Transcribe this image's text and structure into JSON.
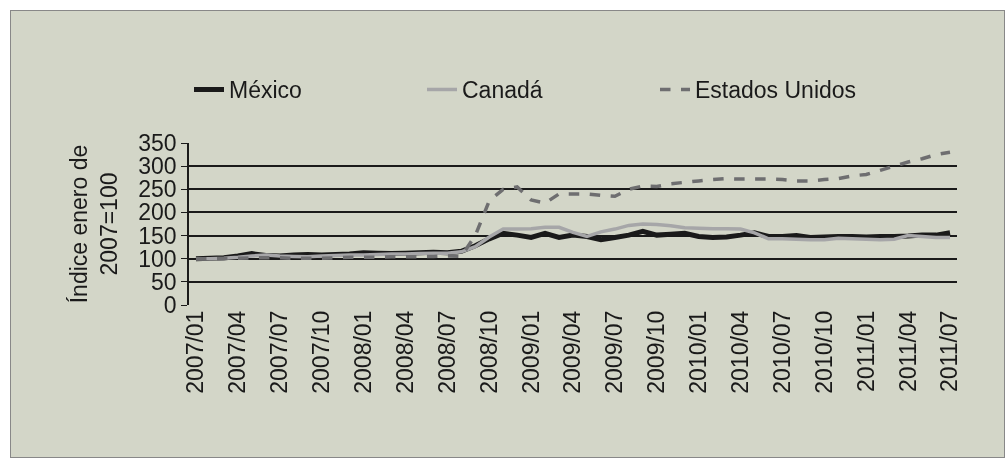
{
  "chart_data": {
    "type": "line",
    "ylabel": "Índice enero de\n2007=100",
    "categories": [
      "2007/01",
      null,
      null,
      "2007/04",
      null,
      null,
      "2007/07",
      null,
      null,
      "2007/10",
      null,
      null,
      "2008/01",
      null,
      null,
      "2008/04",
      null,
      null,
      "2008/07",
      null,
      null,
      "2008/10",
      null,
      null,
      "2009/01",
      null,
      null,
      "2009/04",
      null,
      null,
      "2009/07",
      null,
      null,
      "2009/10",
      null,
      null,
      "2010/01",
      null,
      null,
      "2010/04",
      null,
      null,
      "2010/07",
      null,
      null,
      "2010/10",
      null,
      null,
      "2011/01",
      null,
      null,
      "2011/04",
      null,
      null,
      "2011/07"
    ],
    "series": [
      {
        "name": "México",
        "color": "#1a1a1a",
        "line_style": "solid",
        "values": [
          100,
          101,
          102,
          106,
          111,
          107,
          106,
          108,
          109,
          108,
          109,
          110,
          113,
          112,
          111,
          112,
          113,
          114,
          113,
          116,
          128,
          143,
          155,
          151,
          146,
          155,
          146,
          151,
          148,
          141,
          146,
          151,
          159,
          151,
          153,
          155,
          148,
          146,
          147,
          151,
          156,
          148,
          148,
          150,
          146,
          147,
          148,
          148,
          147,
          148,
          148,
          149,
          151,
          151,
          156
        ]
      },
      {
        "name": "Canadá",
        "color": "#a6a6a8",
        "line_style": "solid",
        "values": [
          100,
          100,
          101,
          103,
          106,
          108,
          106,
          105,
          104,
          106,
          107,
          108,
          108,
          109,
          110,
          110,
          111,
          112,
          112,
          115,
          126,
          147,
          164,
          164,
          165,
          168,
          168,
          157,
          148,
          158,
          164,
          172,
          175,
          174,
          171,
          167,
          166,
          165,
          165,
          164,
          156,
          143,
          143,
          142,
          141,
          141,
          144,
          143,
          142,
          141,
          142,
          150,
          148,
          146,
          146
        ]
      },
      {
        "name": "Estados Unidos",
        "color": "#6e6e70",
        "line_style": "dashed",
        "values": [
          100,
          100,
          100,
          101,
          102,
          102,
          102,
          101,
          101,
          101,
          102,
          103,
          103,
          103,
          104,
          104,
          104,
          105,
          106,
          105,
          150,
          225,
          250,
          255,
          227,
          220,
          240,
          240,
          240,
          237,
          235,
          250,
          257,
          256,
          262,
          265,
          268,
          271,
          273,
          272,
          272,
          272,
          271,
          268,
          268,
          271,
          273,
          279,
          282,
          291,
          300,
          309,
          316,
          325,
          330
        ]
      }
    ],
    "ylim": [
      0,
      350
    ],
    "yticks": [
      0,
      50,
      100,
      150,
      200,
      250,
      300,
      350
    ],
    "grid": "y",
    "legend": "top",
    "marker": "none"
  }
}
